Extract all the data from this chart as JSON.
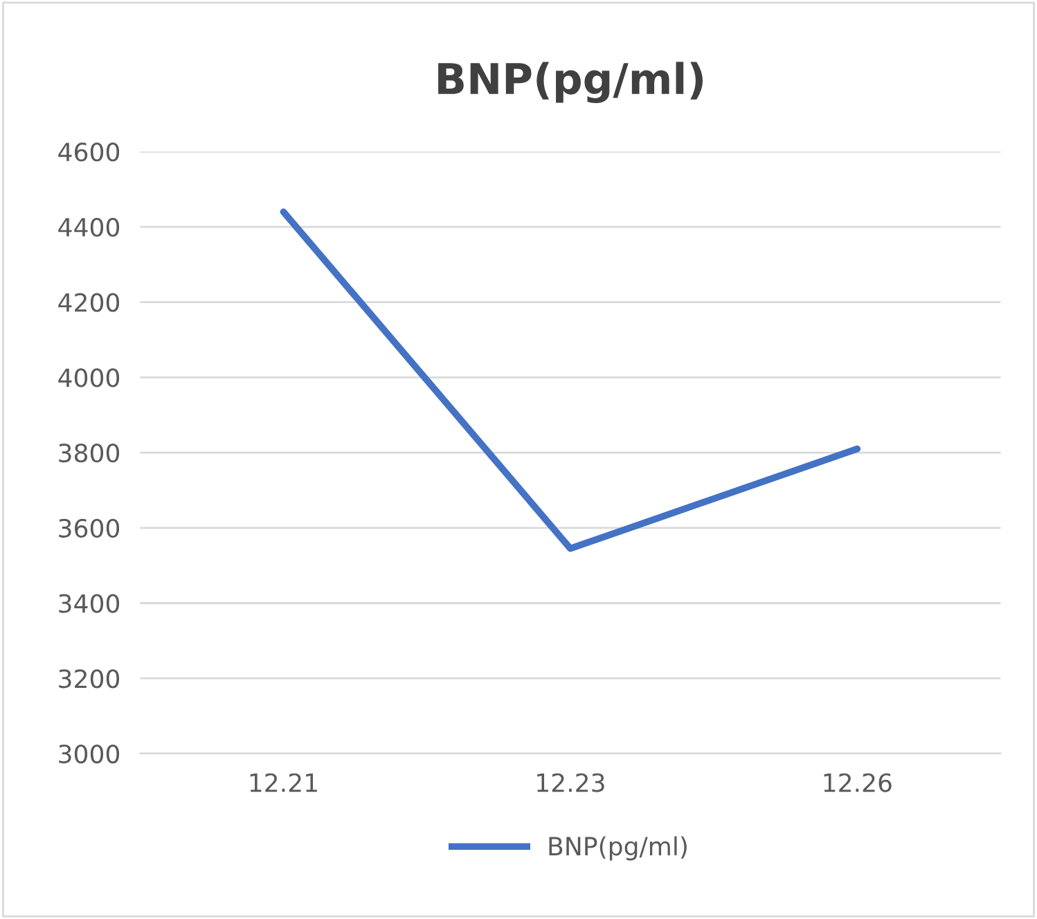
{
  "chart_data": {
    "type": "line",
    "title": "BNP(pg/ml)",
    "categories": [
      "12.21",
      "12.23",
      "12.26"
    ],
    "series": [
      {
        "name": "BNP(pg/ml)",
        "color": "#4472c4",
        "values": [
          4440,
          3545,
          3810
        ]
      }
    ],
    "ylim": [
      3000,
      4600
    ],
    "yticks": [
      3000,
      3200,
      3400,
      3600,
      3800,
      4000,
      4200,
      4400,
      4600
    ],
    "grid": "y",
    "legend": "bottom",
    "marker": "none",
    "line_style": "solid"
  }
}
